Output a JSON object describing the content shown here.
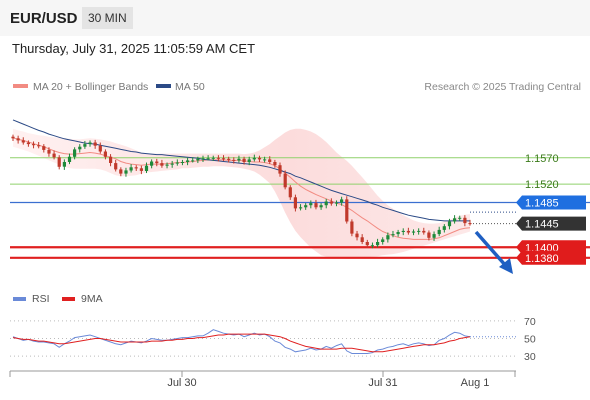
{
  "header": {
    "symbol": "EUR/USD",
    "timeframe": "30 MIN",
    "datetime": "Thursday, July 31, 2025 11:05:59 AM CET"
  },
  "legend": {
    "ma20": "MA 20 + Bollinger Bands",
    "ma50": "MA 50",
    "credit": "Research © 2025 Trading Central",
    "rsi": "RSI",
    "rsi_ma": "9MA"
  },
  "colors": {
    "ma20": "#f28b82",
    "bollinger_fill": "#fddede",
    "ma50": "#2b4a86",
    "bull_candle": "#1e8a3a",
    "bear_candle": "#c0392b",
    "resistance_green": "#8fd16b",
    "level_blue": "#3b6fd0",
    "level_red": "#e02020",
    "label_blue_bg": "#1f6fe0",
    "label_red_bg": "#e01c1c",
    "current_bg": "#333333",
    "arrow": "#1f5fc2",
    "rsi_line": "#6a8ad8",
    "rsi_ma_line": "#e02020"
  },
  "chart_data": {
    "type": "candlestick",
    "price_ylim": [
      1.1334,
      1.1676
    ],
    "x_ticks": [
      "Jul 30",
      "Jul 31",
      "Aug 1"
    ],
    "levels": [
      {
        "value": 1.157,
        "label": "1.1570",
        "kind": "resistance"
      },
      {
        "value": 1.152,
        "label": "1.1520",
        "kind": "resistance"
      },
      {
        "value": 1.1485,
        "label": "1.1485",
        "kind": "pivot"
      },
      {
        "value": 1.14,
        "label": "1.1400",
        "kind": "support"
      },
      {
        "value": 1.138,
        "label": "1.1380",
        "kind": "support"
      }
    ],
    "current_price": {
      "value": 1.1445,
      "label": "1.1445"
    },
    "close": [
      1.1607,
      1.1603,
      1.1599,
      1.1596,
      1.1594,
      1.1592,
      1.1585,
      1.1578,
      1.1571,
      1.1553,
      1.1562,
      1.1572,
      1.1586,
      1.1591,
      1.1596,
      1.1599,
      1.1593,
      1.1582,
      1.1572,
      1.156,
      1.1548,
      1.154,
      1.1546,
      1.1552,
      1.155,
      1.1545,
      1.1555,
      1.1563,
      1.156,
      1.1555,
      1.1557,
      1.1559,
      1.1561,
      1.1562,
      1.1565,
      1.1565,
      1.1568,
      1.1569,
      1.1569,
      1.157,
      1.1569,
      1.1568,
      1.1566,
      1.1565,
      1.1568,
      1.1562,
      1.1567,
      1.157,
      1.1567,
      1.1567,
      1.1562,
      1.1556,
      1.154,
      1.1514,
      1.1495,
      1.1474,
      1.1476,
      1.148,
      1.1484,
      1.1476,
      1.148,
      1.1487,
      1.1483,
      1.1485,
      1.1491,
      1.1449,
      1.1426,
      1.1419,
      1.141,
      1.1404,
      1.1404,
      1.141,
      1.1415,
      1.1423,
      1.1425,
      1.1429,
      1.1431,
      1.1428,
      1.143,
      1.1431,
      1.1428,
      1.1418,
      1.1425,
      1.1433,
      1.144,
      1.1449,
      1.1455,
      1.1456,
      1.1446,
      1.1445
    ],
    "ma20": [
      1.1608,
      1.1605,
      1.1603,
      1.16,
      1.1597,
      1.1594,
      1.1591,
      1.1587,
      1.1583,
      1.158,
      1.1578,
      1.1577,
      1.1577,
      1.1578,
      1.1579,
      1.158,
      1.1579,
      1.1577,
      1.1574,
      1.1571,
      1.1568,
      1.1563,
      1.156,
      1.1558,
      1.1557,
      1.1556,
      1.1557,
      1.1558,
      1.1558,
      1.1558,
      1.1559,
      1.156,
      1.1561,
      1.1561,
      1.1562,
      1.1563,
      1.1564,
      1.1565,
      1.1566,
      1.1566,
      1.1566,
      1.1566,
      1.1565,
      1.1565,
      1.1565,
      1.1564,
      1.1563,
      1.1562,
      1.1562,
      1.1561,
      1.1559,
      1.1555,
      1.1549,
      1.1541,
      1.1533,
      1.1524,
      1.1516,
      1.151,
      1.1505,
      1.15,
      1.1496,
      1.1492,
      1.1488,
      1.1484,
      1.1481,
      1.1476,
      1.147,
      1.1463,
      1.1456,
      1.145,
      1.1443,
      1.1436,
      1.143,
      1.1426,
      1.1422,
      1.1419,
      1.1417,
      1.1416,
      1.1415,
      1.1415,
      1.1415,
      1.1415,
      1.1416,
      1.1418,
      1.1422,
      1.1426,
      1.143,
      1.1434,
      1.1436,
      1.1437
    ],
    "bb_upper": [
      1.1625,
      1.1622,
      1.162,
      1.1617,
      1.1615,
      1.1613,
      1.1612,
      1.161,
      1.1609,
      1.1608,
      1.1607,
      1.1606,
      1.1605,
      1.1605,
      1.1606,
      1.1607,
      1.1606,
      1.1605,
      1.1603,
      1.1601,
      1.1598,
      1.1595,
      1.1592,
      1.1588,
      1.1584,
      1.158,
      1.1578,
      1.1578,
      1.1578,
      1.1578,
      1.1578,
      1.1578,
      1.1578,
      1.1578,
      1.1578,
      1.1578,
      1.1578,
      1.1578,
      1.1578,
      1.1578,
      1.1578,
      1.1578,
      1.1578,
      1.1578,
      1.1578,
      1.1577,
      1.1578,
      1.158,
      1.1584,
      1.159,
      1.1596,
      1.1604,
      1.1611,
      1.1618,
      1.1623,
      1.1625,
      1.1625,
      1.1623,
      1.162,
      1.1615,
      1.1608,
      1.16,
      1.159,
      1.158,
      1.1572,
      1.1564,
      1.1555,
      1.1544,
      1.1533,
      1.1522,
      1.151,
      1.1498,
      1.1488,
      1.148,
      1.1473,
      1.1467,
      1.1461,
      1.1456,
      1.1451,
      1.1448,
      1.1446,
      1.1445,
      1.1445,
      1.1446,
      1.1449,
      1.1452,
      1.1456,
      1.146,
      1.1462,
      1.1463
    ],
    "bb_lower": [
      1.1591,
      1.1588,
      1.1585,
      1.1582,
      1.1578,
      1.1574,
      1.157,
      1.1565,
      1.1561,
      1.1557,
      1.1553,
      1.155,
      1.1549,
      1.1549,
      1.1549,
      1.1549,
      1.1549,
      1.1548,
      1.1545,
      1.1541,
      1.1537,
      1.1535,
      1.1535,
      1.1536,
      1.1537,
      1.154,
      1.1542,
      1.1543,
      1.1544,
      1.1545,
      1.1546,
      1.1547,
      1.1548,
      1.155,
      1.155,
      1.1551,
      1.1552,
      1.1553,
      1.1553,
      1.1554,
      1.1554,
      1.1554,
      1.1553,
      1.1552,
      1.1551,
      1.1549,
      1.1547,
      1.1544,
      1.1538,
      1.153,
      1.1522,
      1.1506,
      1.1487,
      1.1466,
      1.1447,
      1.1431,
      1.1419,
      1.1409,
      1.1399,
      1.1392,
      1.1385,
      1.1382,
      1.1381,
      1.138,
      1.1379,
      1.1378,
      1.1378,
      1.1379,
      1.138,
      1.1381,
      1.1382,
      1.1383,
      1.1385,
      1.1386,
      1.1387,
      1.1389,
      1.1391,
      1.1394,
      1.1397,
      1.14,
      1.1403,
      1.1406,
      1.1409,
      1.1412,
      1.1415,
      1.1418,
      1.1421,
      1.1424,
      1.1427,
      1.143
    ],
    "ma50": [
      1.1642,
      1.1638,
      1.1634,
      1.163,
      1.1626,
      1.1622,
      1.1619,
      1.1615,
      1.1612,
      1.1609,
      1.1606,
      1.1604,
      1.1602,
      1.16,
      1.1598,
      1.1597,
      1.1596,
      1.1594,
      1.1592,
      1.159,
      1.1588,
      1.1586,
      1.1584,
      1.1582,
      1.1581,
      1.1579,
      1.1578,
      1.1577,
      1.1576,
      1.1576,
      1.1575,
      1.1574,
      1.1573,
      1.1572,
      1.1571,
      1.157,
      1.1569,
      1.1567,
      1.1566,
      1.1565,
      1.1564,
      1.1563,
      1.1562,
      1.1561,
      1.156,
      1.1559,
      1.1558,
      1.1557,
      1.1556,
      1.1554,
      1.1552,
      1.1549,
      1.1546,
      1.1543,
      1.154,
      1.1535,
      1.1532,
      1.1528,
      1.1524,
      1.152,
      1.1516,
      1.1512,
      1.1508,
      1.1505,
      1.1502,
      1.1499,
      1.1496,
      1.1493,
      1.149,
      1.1487,
      1.1483,
      1.148,
      1.1476,
      1.1473,
      1.147,
      1.1467,
      1.1464,
      1.1461,
      1.1459,
      1.1457,
      1.1455,
      1.1453,
      1.1452,
      1.1451,
      1.145,
      1.145,
      1.145,
      1.145,
      1.145,
      1.145
    ],
    "rsi_ylim": [
      20,
      80
    ],
    "rsi_ticks": [
      70,
      50,
      30
    ],
    "rsi": [
      52,
      50,
      48,
      49,
      47,
      46,
      46,
      45,
      44,
      40,
      44,
      47,
      51,
      52,
      53,
      54,
      52,
      50,
      48,
      46,
      44,
      43,
      45,
      47,
      46,
      45,
      47,
      50,
      49,
      48,
      48,
      49,
      50,
      51,
      51,
      52,
      53,
      53,
      56,
      60,
      58,
      56,
      55,
      54,
      55,
      52,
      54,
      56,
      54,
      55,
      52,
      47,
      45,
      40,
      38,
      35,
      36,
      37,
      39,
      37,
      38,
      41,
      39,
      42,
      44,
      36,
      33,
      33,
      33,
      33,
      34,
      37,
      38,
      40,
      41,
      43,
      44,
      42,
      44,
      45,
      44,
      42,
      43,
      48,
      50,
      54,
      57,
      56,
      53,
      52
    ],
    "rsi_ma": [
      51,
      50,
      49,
      49,
      48,
      47,
      47,
      46,
      45,
      44,
      44,
      45,
      46,
      47,
      48,
      49,
      50,
      50,
      49,
      48,
      47,
      46,
      46,
      46,
      46,
      46,
      46,
      47,
      47,
      47,
      48,
      48,
      49,
      49,
      50,
      50,
      51,
      51,
      52,
      53,
      54,
      54,
      55,
      55,
      55,
      55,
      55,
      55,
      55,
      55,
      54,
      53,
      52,
      50,
      47,
      45,
      43,
      41,
      40,
      39,
      38,
      38,
      38,
      38,
      39,
      39,
      39,
      38,
      37,
      36,
      35,
      35,
      35,
      36,
      37,
      38,
      39,
      40,
      41,
      42,
      43,
      43,
      43,
      44,
      45,
      47,
      48,
      50,
      51,
      52
    ]
  }
}
